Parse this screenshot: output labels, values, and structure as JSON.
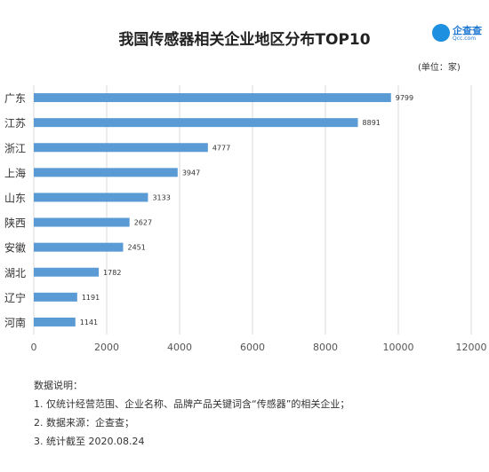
{
  "title": "我国传感器相关企业地区分布TOP10",
  "logo": {
    "name": "企查查",
    "domain": "Qcc.com"
  },
  "unit_label": "(单位：家)",
  "colors": {
    "bar": "#5b9bd5",
    "grid": "#d9d9d9",
    "brand": "#1e90e0"
  },
  "chart_data": {
    "type": "bar",
    "orientation": "horizontal",
    "categories": [
      "广东",
      "江苏",
      "浙江",
      "上海",
      "山东",
      "陕西",
      "安徽",
      "湖北",
      "辽宁",
      "河南"
    ],
    "values": [
      9799,
      8891,
      4777,
      3947,
      3133,
      2627,
      2451,
      1782,
      1191,
      1141
    ],
    "xlim": [
      0,
      12000
    ],
    "xticks": [
      0,
      2000,
      4000,
      6000,
      8000,
      10000,
      12000
    ],
    "grid": true
  },
  "notes": {
    "heading": "数据说明：",
    "lines": [
      "1. 仅统计经营范围、企业名称、品牌产品关键词含“传感器”的相关企业；",
      "2. 数据来源：企查查；",
      "3. 统计截至 2020.08.24"
    ]
  }
}
